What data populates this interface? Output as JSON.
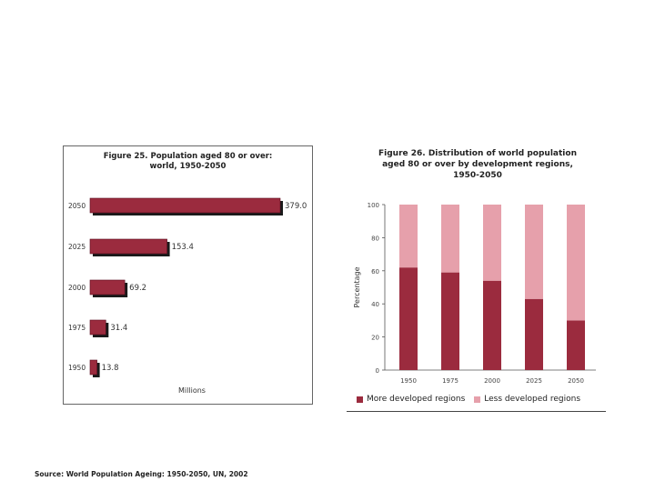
{
  "source_note": "Source: World Population Ageing: 1950-2050, UN, 2002",
  "chart_data": [
    {
      "type": "bar",
      "orientation": "horizontal",
      "title_line1": "Figure 25.  Population aged 80 or over:",
      "title_line2": "world, 1950-2050",
      "xlabel": "Millions",
      "categories": [
        "2050",
        "2025",
        "2000",
        "1975",
        "1950"
      ],
      "values": [
        379.0,
        153.4,
        69.2,
        31.4,
        13.8
      ],
      "value_labels": [
        "379.0",
        "153.4",
        "69.2",
        "31.4",
        "13.8"
      ],
      "xlim": [
        0,
        379
      ],
      "bar_color": "#9b2b3e",
      "shadow_color": "#1a1a1a"
    },
    {
      "type": "bar",
      "stacked": true,
      "title_line1": "Figure 26.  Distribution of world population",
      "title_line2": "aged 80 or over by development regions,",
      "title_line3": "1950-2050",
      "ylabel": "Percentage",
      "ylim": [
        0,
        100
      ],
      "yticks": [
        "0",
        "20",
        "40",
        "60",
        "80",
        "100"
      ],
      "categories": [
        "1950",
        "1975",
        "2000",
        "2025",
        "2050"
      ],
      "series": [
        {
          "name": "More developed regions",
          "values": [
            62,
            59,
            54,
            43,
            30
          ],
          "color": "#9b2b3e"
        },
        {
          "name": "Less developed regions",
          "values": [
            38,
            41,
            46,
            57,
            70
          ],
          "color": "#e6a0ab"
        }
      ]
    }
  ]
}
